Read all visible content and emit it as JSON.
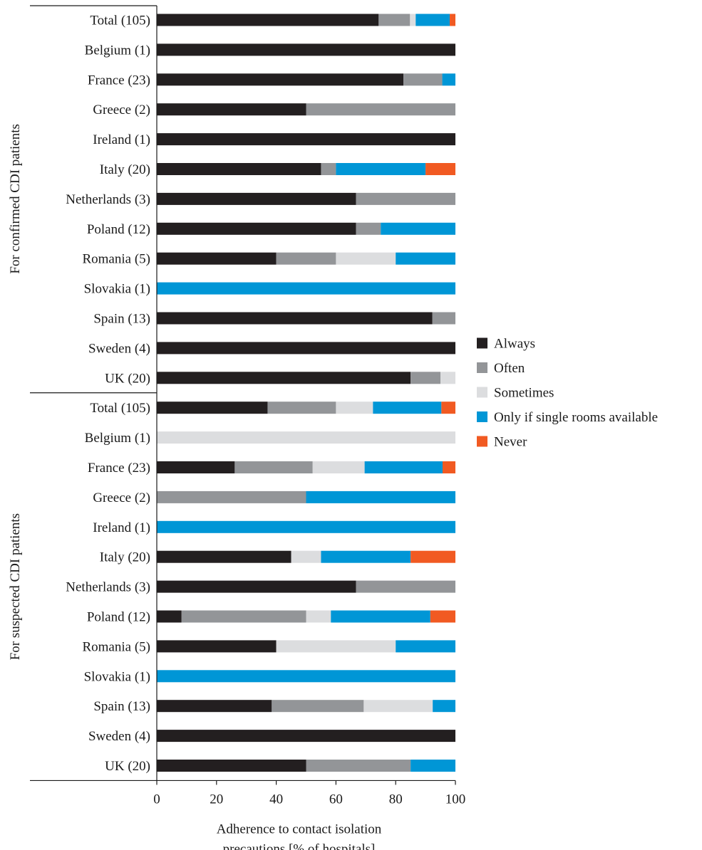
{
  "chart_data": {
    "type": "bar",
    "orientation": "horizontal",
    "stacked": true,
    "xlabel_lines": [
      "Adherence to contact isolation",
      "precautions [% of hospitals]"
    ],
    "xlim": [
      0,
      100
    ],
    "xticks": [
      0,
      20,
      40,
      60,
      80,
      100
    ],
    "grid": false,
    "legend_position": "right",
    "series": [
      {
        "name": "Always",
        "color": "#231f20"
      },
      {
        "name": "Often",
        "color": "#939598"
      },
      {
        "name": "Sometimes",
        "color": "#dcdddf"
      },
      {
        "name": "Only if single rooms available",
        "color": "#0096d6"
      },
      {
        "name": "Never",
        "color": "#f15a22"
      }
    ],
    "groups": [
      {
        "label": "For confirmed CDI patients",
        "rows": [
          {
            "label": "Total (105)",
            "values": [
              74.3,
              10.5,
              1.9,
              11.4,
              1.9
            ]
          },
          {
            "label": "Belgium (1)",
            "values": [
              100,
              0,
              0,
              0,
              0
            ]
          },
          {
            "label": "France (23)",
            "values": [
              82.6,
              13.0,
              0,
              4.4,
              0
            ]
          },
          {
            "label": "Greece (2)",
            "values": [
              50,
              50,
              0,
              0,
              0
            ]
          },
          {
            "label": "Ireland (1)",
            "values": [
              100,
              0,
              0,
              0,
              0
            ]
          },
          {
            "label": "Italy (20)",
            "values": [
              55,
              5,
              0,
              30,
              10
            ]
          },
          {
            "label": "Netherlands (3)",
            "values": [
              66.7,
              33.3,
              0,
              0,
              0
            ]
          },
          {
            "label": "Poland (12)",
            "values": [
              66.7,
              8.3,
              0,
              25,
              0
            ]
          },
          {
            "label": "Romania (5)",
            "values": [
              40,
              20,
              20,
              20,
              0
            ]
          },
          {
            "label": "Slovakia (1)",
            "values": [
              0,
              0,
              0,
              100,
              0
            ]
          },
          {
            "label": "Spain (13)",
            "values": [
              92.3,
              7.7,
              0,
              0,
              0
            ]
          },
          {
            "label": "Sweden (4)",
            "values": [
              100,
              0,
              0,
              0,
              0
            ]
          },
          {
            "label": "UK (20)",
            "values": [
              85,
              10,
              5,
              0,
              0
            ]
          }
        ]
      },
      {
        "label": "For suspected CDI patients",
        "rows": [
          {
            "label": "Total (105)",
            "values": [
              37.1,
              22.9,
              12.4,
              22.9,
              4.7
            ]
          },
          {
            "label": "Belgium (1)",
            "values": [
              0,
              0,
              100,
              0,
              0
            ]
          },
          {
            "label": "France (23)",
            "values": [
              26.1,
              26.1,
              17.4,
              26.1,
              4.3
            ]
          },
          {
            "label": "Greece (2)",
            "values": [
              0,
              50,
              0,
              50,
              0
            ]
          },
          {
            "label": "Ireland (1)",
            "values": [
              0,
              0,
              0,
              100,
              0
            ]
          },
          {
            "label": "Italy (20)",
            "values": [
              45,
              0,
              10,
              30,
              15
            ]
          },
          {
            "label": "Netherlands (3)",
            "values": [
              66.7,
              33.3,
              0,
              0,
              0
            ]
          },
          {
            "label": "Poland (12)",
            "values": [
              8.3,
              41.7,
              8.3,
              33.3,
              8.4
            ]
          },
          {
            "label": "Romania (5)",
            "values": [
              40,
              0,
              40,
              20,
              0
            ]
          },
          {
            "label": "Slovakia (1)",
            "values": [
              0,
              0,
              0,
              100,
              0
            ]
          },
          {
            "label": "Spain (13)",
            "values": [
              38.5,
              30.8,
              23.1,
              7.6,
              0
            ]
          },
          {
            "label": "Sweden (4)",
            "values": [
              100,
              0,
              0,
              0,
              0
            ]
          },
          {
            "label": "UK (20)",
            "values": [
              50,
              35,
              0,
              15,
              0
            ]
          }
        ]
      }
    ]
  }
}
